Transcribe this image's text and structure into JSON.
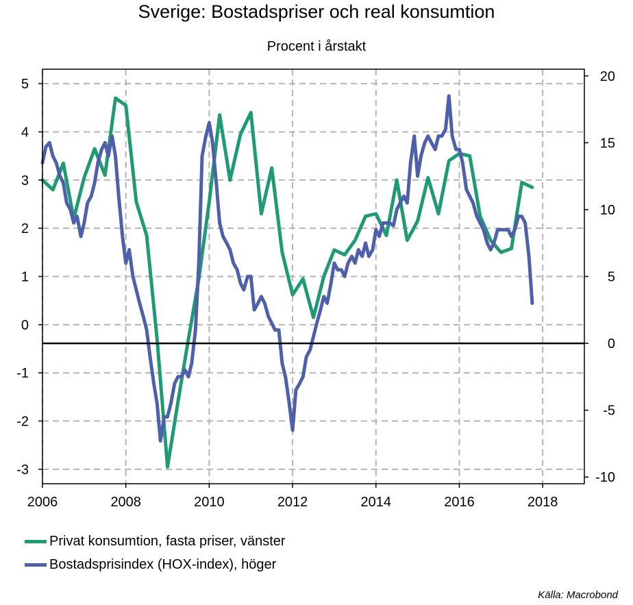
{
  "chart_data": {
    "type": "line",
    "title": "Sverige: Bostadspriser och real konsumtion",
    "subtitle": "Procent i årstakt",
    "source": "Källa: Macrobond",
    "x_ticks": [
      "2006",
      "2008",
      "2010",
      "2012",
      "2014",
      "2016",
      "2018"
    ],
    "xlim": [
      2006,
      2019
    ],
    "left_axis": {
      "ylim": [
        -3.3,
        5.3
      ],
      "ticks": [
        "5",
        "4",
        "3",
        "2",
        "1",
        "0",
        "-1",
        "-2",
        "-3"
      ]
    },
    "right_axis": {
      "ylim": [
        -10.5,
        20.5
      ],
      "ticks": [
        "20",
        "15",
        "10",
        "5",
        "0",
        "-5",
        "-10"
      ]
    },
    "zero_line_axis": "right",
    "grid": true,
    "series": [
      {
        "name": "Privat konsumtion, fasta priser, vänster",
        "axis": "left",
        "color": "#1f9a74",
        "points": [
          [
            2006.0,
            3.0
          ],
          [
            2006.25,
            2.8
          ],
          [
            2006.5,
            3.35
          ],
          [
            2006.75,
            2.2
          ],
          [
            2007.0,
            3.05
          ],
          [
            2007.25,
            3.65
          ],
          [
            2007.5,
            3.1
          ],
          [
            2007.75,
            4.7
          ],
          [
            2008.0,
            4.55
          ],
          [
            2008.25,
            2.55
          ],
          [
            2008.5,
            1.85
          ],
          [
            2008.75,
            -0.3
          ],
          [
            2009.0,
            -2.95
          ],
          [
            2009.25,
            -1.6
          ],
          [
            2009.5,
            -0.3
          ],
          [
            2009.75,
            0.95
          ],
          [
            2010.0,
            2.55
          ],
          [
            2010.25,
            4.35
          ],
          [
            2010.5,
            3.0
          ],
          [
            2010.75,
            3.95
          ],
          [
            2011.0,
            4.4
          ],
          [
            2011.25,
            2.3
          ],
          [
            2011.5,
            3.25
          ],
          [
            2011.75,
            1.5
          ],
          [
            2012.0,
            0.62
          ],
          [
            2012.25,
            0.95
          ],
          [
            2012.5,
            0.15
          ],
          [
            2012.75,
            1.0
          ],
          [
            2013.0,
            1.55
          ],
          [
            2013.25,
            1.45
          ],
          [
            2013.5,
            1.75
          ],
          [
            2013.75,
            2.25
          ],
          [
            2014.0,
            2.3
          ],
          [
            2014.25,
            1.85
          ],
          [
            2014.5,
            3.0
          ],
          [
            2014.75,
            1.75
          ],
          [
            2015.0,
            2.15
          ],
          [
            2015.25,
            3.05
          ],
          [
            2015.5,
            2.3
          ],
          [
            2015.75,
            3.4
          ],
          [
            2016.0,
            3.55
          ],
          [
            2016.25,
            3.5
          ],
          [
            2016.5,
            2.25
          ],
          [
            2016.75,
            1.75
          ],
          [
            2017.0,
            1.5
          ],
          [
            2017.25,
            1.58
          ],
          [
            2017.5,
            2.95
          ],
          [
            2017.75,
            2.85
          ]
        ]
      },
      {
        "name": "Bostadsprisindex (HOX-index), höger",
        "axis": "right",
        "color": "#4f60ab",
        "points": [
          [
            2006.0,
            13.5
          ],
          [
            2006.08,
            14.7
          ],
          [
            2006.17,
            15.0
          ],
          [
            2006.25,
            14.0
          ],
          [
            2006.33,
            13.5
          ],
          [
            2006.42,
            12.5
          ],
          [
            2006.5,
            12.0
          ],
          [
            2006.58,
            10.5
          ],
          [
            2006.67,
            10.0
          ],
          [
            2006.75,
            9.0
          ],
          [
            2006.83,
            9.5
          ],
          [
            2006.92,
            8.0
          ],
          [
            2007.0,
            9.0
          ],
          [
            2007.08,
            10.5
          ],
          [
            2007.17,
            11.0
          ],
          [
            2007.25,
            12.0
          ],
          [
            2007.33,
            13.5
          ],
          [
            2007.42,
            14.5
          ],
          [
            2007.5,
            15.0
          ],
          [
            2007.58,
            14.0
          ],
          [
            2007.67,
            15.5
          ],
          [
            2007.75,
            14.0
          ],
          [
            2007.83,
            11.0
          ],
          [
            2007.92,
            8.0
          ],
          [
            2008.0,
            6.0
          ],
          [
            2008.08,
            7.0
          ],
          [
            2008.17,
            5.0
          ],
          [
            2008.25,
            4.0
          ],
          [
            2008.33,
            3.0
          ],
          [
            2008.42,
            2.0
          ],
          [
            2008.5,
            1.0
          ],
          [
            2008.58,
            -1.0
          ],
          [
            2008.67,
            -3.0
          ],
          [
            2008.75,
            -4.5
          ],
          [
            2008.83,
            -7.3
          ],
          [
            2008.92,
            -5.5
          ],
          [
            2009.0,
            -5.5
          ],
          [
            2009.08,
            -4.5
          ],
          [
            2009.17,
            -3.0
          ],
          [
            2009.25,
            -2.5
          ],
          [
            2009.33,
            -2.5
          ],
          [
            2009.42,
            -2.0
          ],
          [
            2009.5,
            -2.5
          ],
          [
            2009.58,
            -1.5
          ],
          [
            2009.67,
            1.0
          ],
          [
            2009.75,
            6.0
          ],
          [
            2009.83,
            14.0
          ],
          [
            2009.92,
            15.5
          ],
          [
            2010.0,
            16.5
          ],
          [
            2010.08,
            15.0
          ],
          [
            2010.17,
            12.0
          ],
          [
            2010.25,
            9.0
          ],
          [
            2010.33,
            8.0
          ],
          [
            2010.42,
            7.5
          ],
          [
            2010.5,
            7.0
          ],
          [
            2010.58,
            6.0
          ],
          [
            2010.67,
            5.5
          ],
          [
            2010.75,
            4.5
          ],
          [
            2010.83,
            4.0
          ],
          [
            2010.92,
            5.0
          ],
          [
            2011.0,
            5.0
          ],
          [
            2011.08,
            2.5
          ],
          [
            2011.17,
            3.0
          ],
          [
            2011.25,
            3.5
          ],
          [
            2011.33,
            3.0
          ],
          [
            2011.42,
            2.0
          ],
          [
            2011.5,
            1.5
          ],
          [
            2011.58,
            1.0
          ],
          [
            2011.67,
            1.0
          ],
          [
            2011.75,
            -1.5
          ],
          [
            2011.83,
            -2.5
          ],
          [
            2011.92,
            -4.5
          ],
          [
            2012.0,
            -6.5
          ],
          [
            2012.08,
            -3.5
          ],
          [
            2012.17,
            -3.0
          ],
          [
            2012.25,
            -2.5
          ],
          [
            2012.33,
            -1.0
          ],
          [
            2012.42,
            -0.5
          ],
          [
            2012.5,
            0.5
          ],
          [
            2012.58,
            1.5
          ],
          [
            2012.67,
            2.5
          ],
          [
            2012.75,
            3.5
          ],
          [
            2012.83,
            3.0
          ],
          [
            2012.92,
            4.5
          ],
          [
            2013.0,
            6.0
          ],
          [
            2013.08,
            5.5
          ],
          [
            2013.17,
            5.5
          ],
          [
            2013.25,
            5.0
          ],
          [
            2013.33,
            6.0
          ],
          [
            2013.42,
            6.5
          ],
          [
            2013.5,
            6.0
          ],
          [
            2013.58,
            7.0
          ],
          [
            2013.67,
            6.5
          ],
          [
            2013.75,
            7.5
          ],
          [
            2013.83,
            6.5
          ],
          [
            2013.92,
            7.0
          ],
          [
            2014.0,
            8.5
          ],
          [
            2014.08,
            8.0
          ],
          [
            2014.17,
            9.0
          ],
          [
            2014.25,
            9.0
          ],
          [
            2014.33,
            9.0
          ],
          [
            2014.42,
            8.8
          ],
          [
            2014.5,
            10.0
          ],
          [
            2014.58,
            10.5
          ],
          [
            2014.67,
            11.0
          ],
          [
            2014.75,
            10.5
          ],
          [
            2014.83,
            13.5
          ],
          [
            2014.92,
            15.5
          ],
          [
            2015.0,
            12.5
          ],
          [
            2015.08,
            14.0
          ],
          [
            2015.17,
            15.0
          ],
          [
            2015.25,
            15.5
          ],
          [
            2015.33,
            15.0
          ],
          [
            2015.42,
            14.5
          ],
          [
            2015.5,
            15.5
          ],
          [
            2015.58,
            15.5
          ],
          [
            2015.67,
            16.0
          ],
          [
            2015.75,
            18.5
          ],
          [
            2015.83,
            15.5
          ],
          [
            2015.92,
            14.5
          ],
          [
            2016.0,
            14.5
          ],
          [
            2016.08,
            13.5
          ],
          [
            2016.17,
            11.5
          ],
          [
            2016.25,
            11.0
          ],
          [
            2016.33,
            10.5
          ],
          [
            2016.42,
            9.5
          ],
          [
            2016.5,
            9.0
          ],
          [
            2016.58,
            8.5
          ],
          [
            2016.67,
            7.5
          ],
          [
            2016.75,
            7.0
          ],
          [
            2016.83,
            7.5
          ],
          [
            2016.92,
            8.5
          ],
          [
            2017.0,
            8.5
          ],
          [
            2017.08,
            8.5
          ],
          [
            2017.17,
            8.5
          ],
          [
            2017.25,
            8.0
          ],
          [
            2017.33,
            8.5
          ],
          [
            2017.42,
            9.5
          ],
          [
            2017.5,
            9.5
          ],
          [
            2017.58,
            9.0
          ],
          [
            2017.67,
            6.5
          ],
          [
            2017.75,
            3.0
          ]
        ]
      }
    ]
  }
}
